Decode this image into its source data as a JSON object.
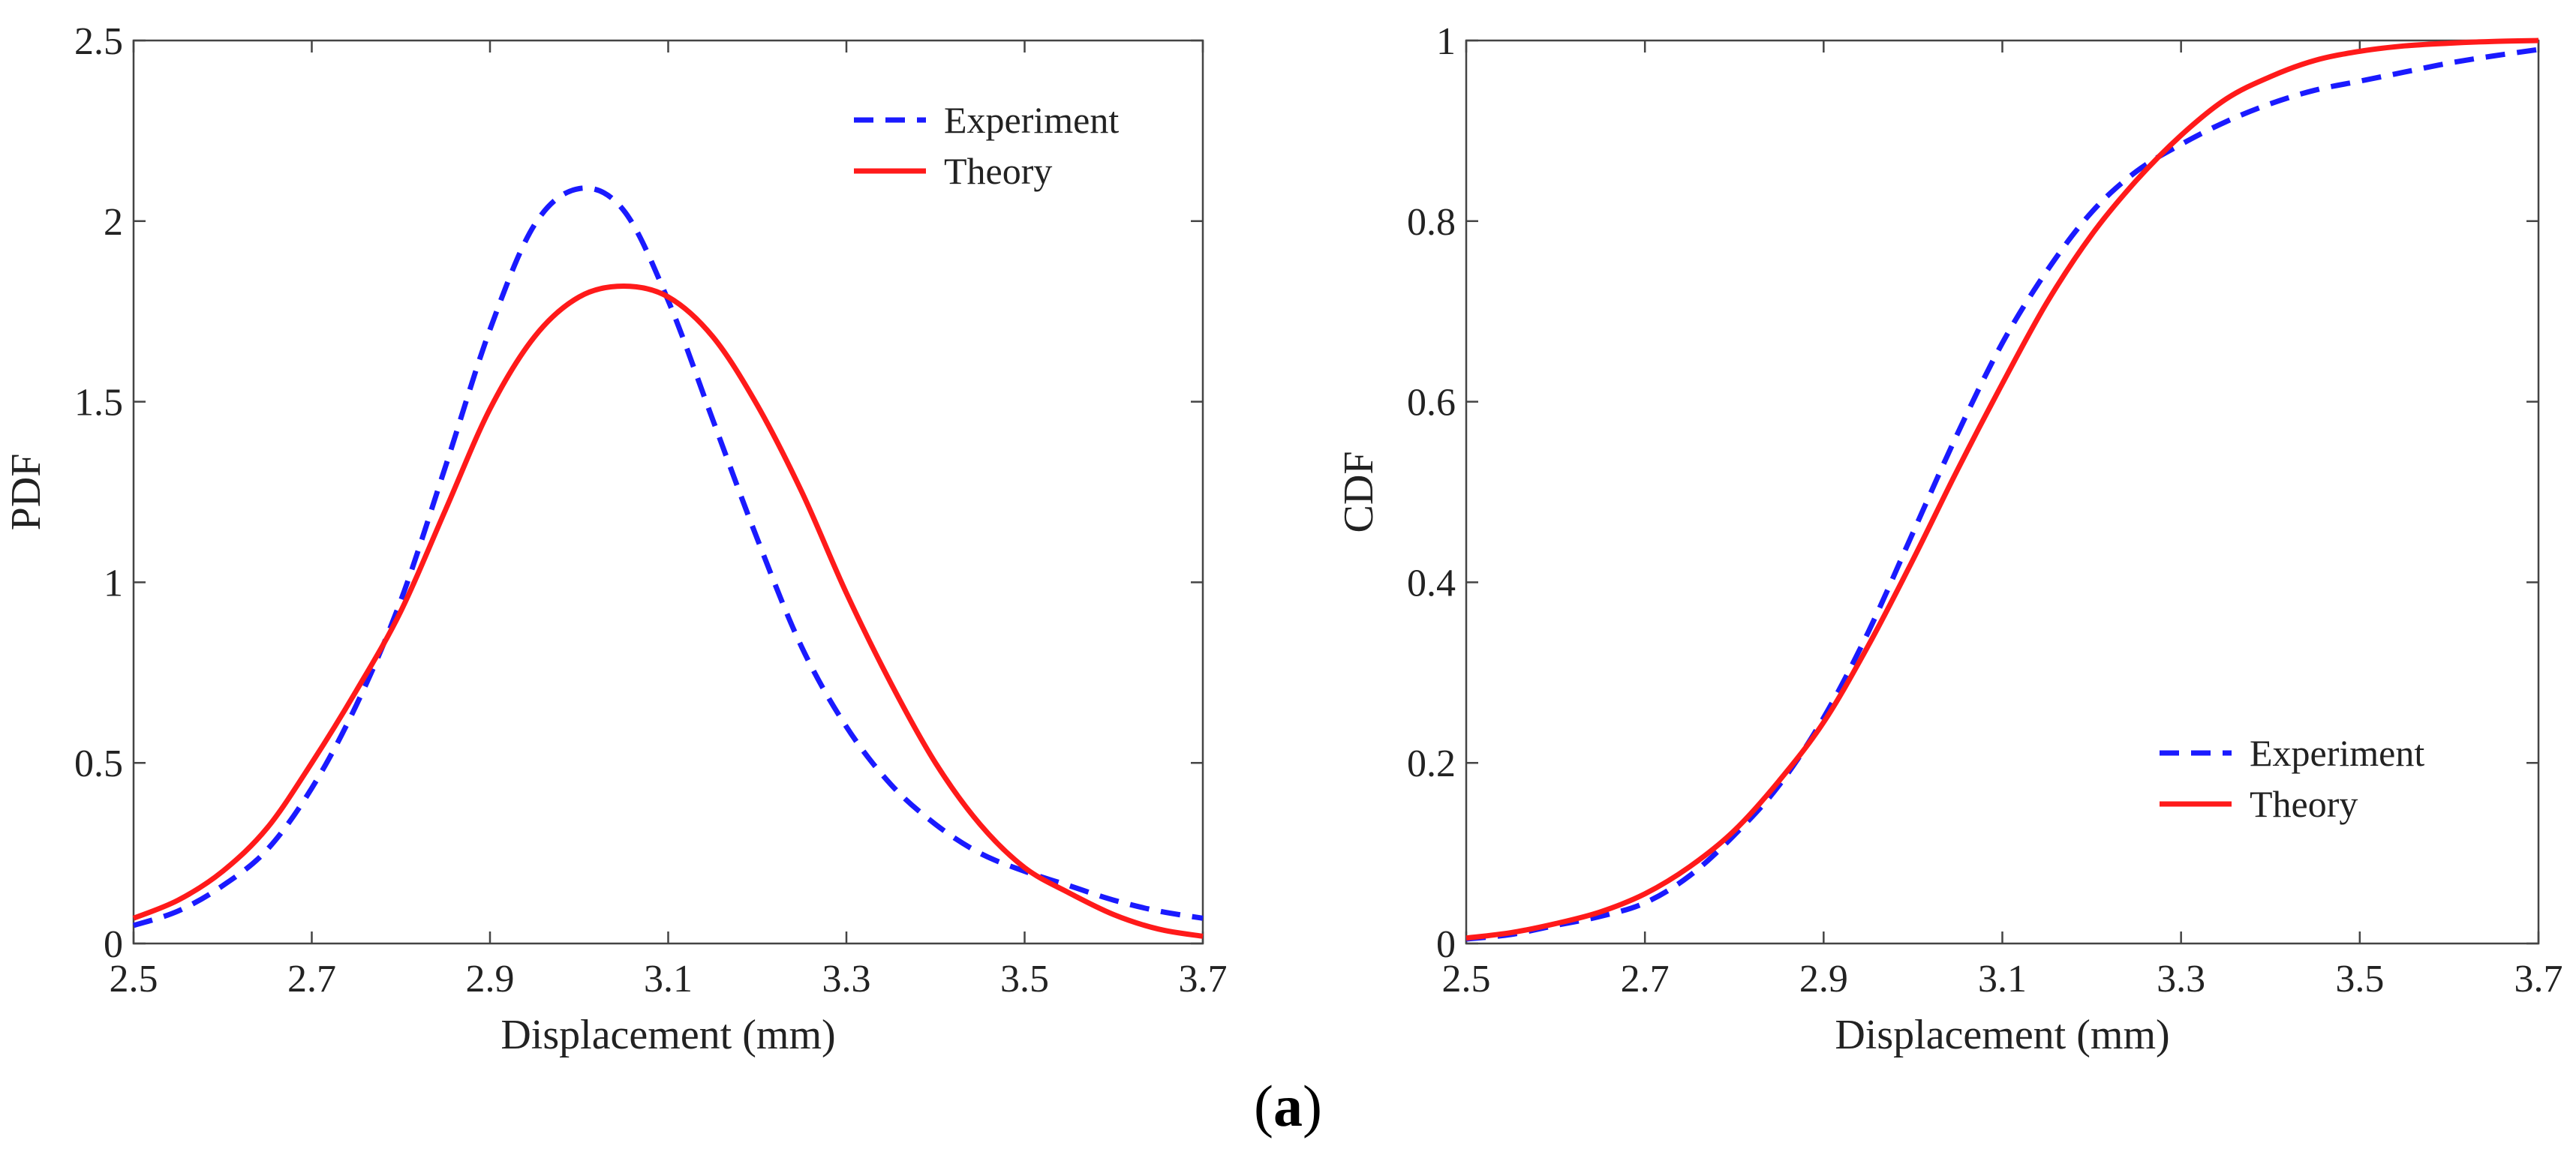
{
  "caption": {
    "open": "(",
    "letter": "a",
    "close": ")"
  },
  "colors": {
    "experiment": "#1a1aff",
    "theory": "#ff1a1a",
    "axis": "#444444"
  },
  "chart_data": [
    {
      "type": "line",
      "xlabel": "Displacement (mm)",
      "ylabel": "PDF",
      "xlim": [
        2.5,
        3.7
      ],
      "ylim": [
        0,
        2.5
      ],
      "xticks": [
        "2.5",
        "2.7",
        "2.9",
        "3.1",
        "3.3",
        "3.5",
        "3.7"
      ],
      "yticks": [
        "0",
        "0.5",
        "1",
        "1.5",
        "2",
        "2.5"
      ],
      "grid": false,
      "legend_position": "top-right",
      "x": [
        2.5,
        2.55,
        2.6,
        2.65,
        2.7,
        2.75,
        2.8,
        2.85,
        2.9,
        2.95,
        3.0,
        3.05,
        3.1,
        3.15,
        3.2,
        3.25,
        3.3,
        3.35,
        3.4,
        3.45,
        3.5,
        3.55,
        3.6,
        3.65,
        3.7
      ],
      "series": [
        {
          "name": "Experiment",
          "style": "dashed",
          "values": [
            0.05,
            0.09,
            0.16,
            0.26,
            0.43,
            0.66,
            0.95,
            1.32,
            1.7,
            1.99,
            2.09,
            2.03,
            1.78,
            1.45,
            1.12,
            0.82,
            0.6,
            0.44,
            0.33,
            0.25,
            0.2,
            0.16,
            0.12,
            0.09,
            0.07
          ]
        },
        {
          "name": "Theory",
          "style": "solid",
          "values": [
            0.07,
            0.12,
            0.2,
            0.32,
            0.5,
            0.7,
            0.92,
            1.2,
            1.48,
            1.68,
            1.79,
            1.82,
            1.79,
            1.68,
            1.49,
            1.25,
            0.97,
            0.72,
            0.5,
            0.33,
            0.21,
            0.14,
            0.08,
            0.04,
            0.02
          ]
        }
      ]
    },
    {
      "type": "line",
      "xlabel": "Displacement (mm)",
      "ylabel": "CDF",
      "xlim": [
        2.5,
        3.7
      ],
      "ylim": [
        0,
        1
      ],
      "xticks": [
        "2.5",
        "2.7",
        "2.9",
        "3.1",
        "3.3",
        "3.5",
        "3.7"
      ],
      "yticks": [
        "0",
        "0.2",
        "0.4",
        "0.6",
        "0.8",
        "1"
      ],
      "grid": false,
      "legend_position": "bottom-right",
      "x": [
        2.5,
        2.55,
        2.6,
        2.65,
        2.7,
        2.75,
        2.8,
        2.85,
        2.9,
        2.95,
        3.0,
        3.05,
        3.1,
        3.15,
        3.2,
        3.25,
        3.3,
        3.35,
        3.4,
        3.45,
        3.5,
        3.55,
        3.6,
        3.65,
        3.7
      ],
      "series": [
        {
          "name": "Experiment",
          "style": "dashed",
          "values": [
            0.005,
            0.01,
            0.02,
            0.03,
            0.045,
            0.075,
            0.12,
            0.175,
            0.25,
            0.345,
            0.455,
            0.565,
            0.665,
            0.745,
            0.81,
            0.855,
            0.885,
            0.91,
            0.93,
            0.945,
            0.955,
            0.965,
            0.975,
            0.983,
            0.99
          ]
        },
        {
          "name": "Theory",
          "style": "solid",
          "values": [
            0.006,
            0.012,
            0.022,
            0.035,
            0.055,
            0.085,
            0.125,
            0.18,
            0.245,
            0.33,
            0.425,
            0.525,
            0.62,
            0.71,
            0.785,
            0.845,
            0.895,
            0.935,
            0.96,
            0.978,
            0.988,
            0.994,
            0.997,
            0.999,
            1.0
          ]
        }
      ]
    }
  ]
}
